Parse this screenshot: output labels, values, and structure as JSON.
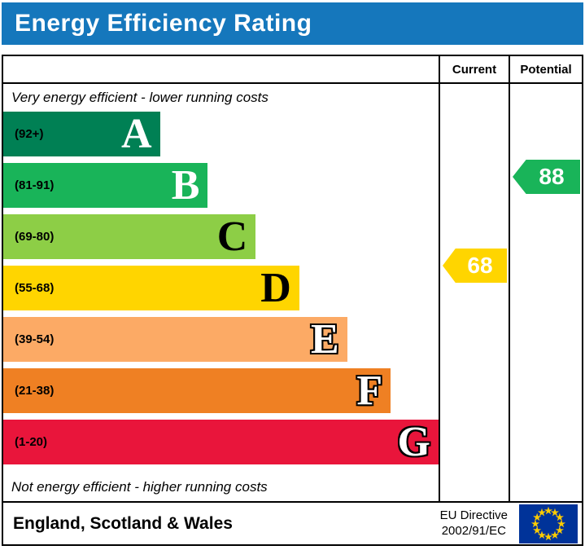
{
  "header": {
    "title": "Energy Efficiency Rating",
    "bg_color": "#1577bc"
  },
  "chart_data": {
    "type": "bar",
    "title": "Energy Efficiency Rating",
    "top_note": "Very energy efficient - lower running costs",
    "bottom_note": "Not energy efficient - higher running costs",
    "columns": [
      "Current",
      "Potential"
    ],
    "bands": [
      {
        "letter": "A",
        "range_label": "(92+)",
        "min": 92,
        "max": 100,
        "color": "#008054",
        "width_pct": 36,
        "letter_color": "#ffffff",
        "letter_outline": false
      },
      {
        "letter": "B",
        "range_label": "(81-91)",
        "min": 81,
        "max": 91,
        "color": "#19b459",
        "width_pct": 47,
        "letter_color": "#ffffff",
        "letter_outline": false
      },
      {
        "letter": "C",
        "range_label": "(69-80)",
        "min": 69,
        "max": 80,
        "color": "#8dce46",
        "width_pct": 58,
        "letter_color": "#000000",
        "letter_outline": false
      },
      {
        "letter": "D",
        "range_label": "(55-68)",
        "min": 55,
        "max": 68,
        "color": "#ffd500",
        "width_pct": 68,
        "letter_color": "#000000",
        "letter_outline": false
      },
      {
        "letter": "E",
        "range_label": "(39-54)",
        "min": 39,
        "max": 54,
        "color": "#fcaa65",
        "width_pct": 79,
        "letter_color": "#ffffff",
        "letter_outline": true
      },
      {
        "letter": "F",
        "range_label": "(21-38)",
        "min": 21,
        "max": 38,
        "color": "#ef8023",
        "width_pct": 89,
        "letter_color": "#ffffff",
        "letter_outline": true
      },
      {
        "letter": "G",
        "range_label": "(1-20)",
        "min": 1,
        "max": 20,
        "color": "#e9153b",
        "width_pct": 100,
        "letter_color": "#ffffff",
        "letter_outline": true
      }
    ],
    "ratings": {
      "current": {
        "value": 68,
        "band": "D",
        "color": "#ffd500"
      },
      "potential": {
        "value": 88,
        "band": "B",
        "color": "#19b459"
      }
    }
  },
  "footer": {
    "region": "England, Scotland & Wales",
    "directive_line1": "EU Directive",
    "directive_line2": "2002/91/EC",
    "eu_flag": {
      "bg": "#003399",
      "star_color": "#ffcc00"
    }
  }
}
